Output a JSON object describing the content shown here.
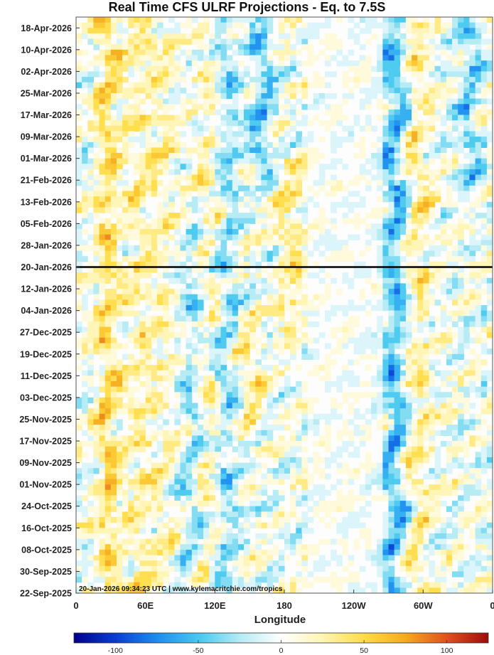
{
  "chart_data": {
    "type": "heatmap",
    "title": "Real Time CFS ULRF Projections - Eq. to 7.5S",
    "xlabel": "Longitude",
    "ylabel": "",
    "x_ticks": [
      "0",
      "60E",
      "120E",
      "180",
      "120W",
      "60W",
      "0"
    ],
    "x_tick_degrees": [
      0,
      60,
      120,
      180,
      240,
      300,
      360
    ],
    "y_ticks": [
      "18-Apr-2026",
      "10-Apr-2026",
      "02-Apr-2026",
      "25-Mar-2026",
      "17-Mar-2026",
      "09-Mar-2026",
      "01-Mar-2026",
      "21-Feb-2026",
      "13-Feb-2026",
      "05-Feb-2026",
      "28-Jan-2026",
      "20-Jan-2026",
      "12-Jan-2026",
      "04-Jan-2026",
      "27-Dec-2025",
      "19-Dec-2025",
      "11-Dec-2025",
      "03-Dec-2025",
      "25-Nov-2025",
      "17-Nov-2025",
      "09-Nov-2025",
      "01-Nov-2025",
      "24-Oct-2025",
      "16-Oct-2025",
      "08-Oct-2025",
      "30-Sep-2025",
      "22-Sep-2025"
    ],
    "y_range": [
      "22-Sep-2025",
      "22-Apr-2026"
    ],
    "x_range": [
      0,
      360
    ],
    "reference_line": "20-Jan-2026",
    "colorbar": {
      "ticks": [
        "-100",
        "-50",
        "0",
        "50",
        "100"
      ],
      "tick_values": [
        -100,
        -50,
        0,
        50,
        100
      ],
      "range": [
        -125,
        125
      ]
    },
    "credit": "20-Jan-2026 09:34:23 UTC | www.kylemacritchie.com/tropics",
    "features": [
      {
        "lon": 28,
        "start": "22-Sep-2025",
        "end": "22-Apr-2026",
        "value": 45
      },
      {
        "lon": 55,
        "start": "22-Sep-2025",
        "end": "22-Apr-2026",
        "value": 28
      },
      {
        "lon": 75,
        "start": "22-Sep-2025",
        "end": "22-Apr-2026",
        "value": 20
      },
      {
        "lon": 100,
        "start": "22-Sep-2025",
        "end": "05-Feb-2026",
        "value": -30
      },
      {
        "lon": 115,
        "start": "22-Sep-2025",
        "end": "22-Apr-2026",
        "value": 24
      },
      {
        "lon": 130,
        "start": "22-Sep-2025",
        "end": "22-Apr-2026",
        "value": -35
      },
      {
        "lon": 150,
        "start": "17-Nov-2025",
        "end": "04-Jan-2026",
        "value": 30
      },
      {
        "lon": 160,
        "start": "21-Feb-2026",
        "end": "22-Apr-2026",
        "value": -45
      },
      {
        "lon": 185,
        "start": "27-Dec-2025",
        "end": "01-Mar-2026",
        "value": 35
      },
      {
        "lon": 275,
        "start": "22-Sep-2025",
        "end": "22-Apr-2026",
        "value": -55
      },
      {
        "lon": 295,
        "start": "22-Sep-2025",
        "end": "22-Apr-2026",
        "value": 32
      },
      {
        "lon": 340,
        "start": "13-Feb-2026",
        "end": "22-Apr-2026",
        "value": -40
      }
    ]
  },
  "colors": {
    "scale": [
      "#00008c",
      "#0a3cd2",
      "#1e8cf0",
      "#46c8f0",
      "#b4ebf5",
      "#ffffff",
      "#fff5b4",
      "#ffdc46",
      "#f5aa1e",
      "#e1501e",
      "#a00a0a"
    ],
    "reference_line": "#000000",
    "axis": "#333333"
  }
}
